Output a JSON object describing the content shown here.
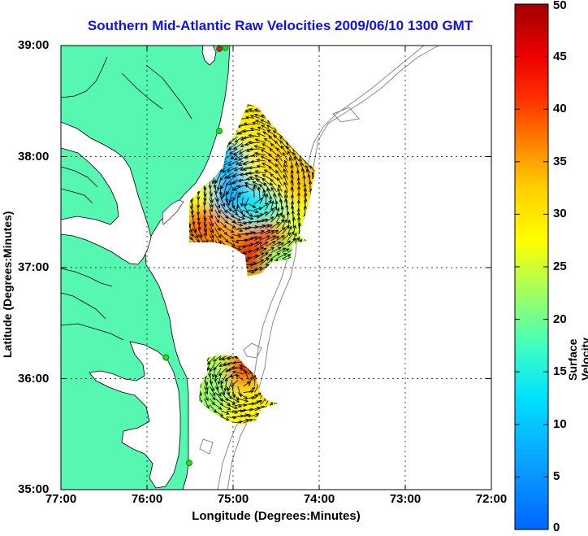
{
  "title": "Southern Mid-Atlantic Raw Velocities 2009/06/10 1300 GMT",
  "xlabel": "Longitude (Degrees:Minutes)",
  "ylabel": "Latitude (Degrees:Minutes)",
  "colorbar_label": "Surface Velocity (cm/s)",
  "x_ticks": [
    "77:00",
    "76:00",
    "75:00",
    "74:00",
    "73:00",
    "72:00"
  ],
  "y_ticks": [
    "39:00",
    "38:00",
    "37:00",
    "36:00",
    "35:00"
  ],
  "colorbar_ticks": [
    "50",
    "45",
    "40",
    "35",
    "30",
    "25",
    "20",
    "15",
    "10",
    "5",
    "0"
  ],
  "colors": {
    "land": "#55f7b1",
    "title": "#1010ee",
    "bathymetry": "#888888",
    "station": "#22dd22",
    "station_red": "#ee1111"
  },
  "chart_data": {
    "type": "heatmap",
    "map_extent": {
      "lon": [
        -77.0,
        -72.0
      ],
      "lat": [
        35.0,
        39.0
      ]
    },
    "colorbar_range": [
      0,
      50
    ],
    "colormap": "jet",
    "grid": true,
    "colorbar_placement": "right",
    "stations": [
      {
        "lon": -75.16,
        "lat": 38.97,
        "color": "red"
      },
      {
        "lon": -75.09,
        "lat": 38.98,
        "color": "green"
      },
      {
        "lon": -75.16,
        "lat": 38.23,
        "color": "green"
      },
      {
        "lon": -75.78,
        "lat": 36.19,
        "color": "green"
      },
      {
        "lon": -75.51,
        "lat": 35.24,
        "color": "green"
      }
    ],
    "velocity_regions": [
      {
        "name": "northern-region",
        "lon_range": [
          -75.6,
          -74.0
        ],
        "lat_range": [
          36.75,
          38.5
        ],
        "samples": [
          {
            "lon": -75.1,
            "lat": 37.95,
            "speed": 10
          },
          {
            "lon": -75.0,
            "lat": 37.65,
            "speed": 8
          },
          {
            "lon": -74.75,
            "lat": 37.55,
            "speed": 12
          },
          {
            "lon": -74.6,
            "lat": 37.45,
            "speed": 15
          },
          {
            "lon": -74.3,
            "lat": 38.2,
            "speed": 28
          },
          {
            "lon": -74.5,
            "lat": 38.0,
            "speed": 32
          },
          {
            "lon": -74.7,
            "lat": 38.3,
            "speed": 30
          },
          {
            "lon": -74.2,
            "lat": 37.8,
            "speed": 33
          },
          {
            "lon": -74.4,
            "lat": 37.3,
            "speed": 25
          },
          {
            "lon": -75.35,
            "lat": 37.35,
            "speed": 38
          },
          {
            "lon": -75.0,
            "lat": 37.25,
            "speed": 35
          },
          {
            "lon": -74.75,
            "lat": 37.1,
            "speed": 48
          },
          {
            "lon": -74.6,
            "lat": 37.2,
            "speed": 40
          },
          {
            "lon": -74.4,
            "lat": 37.05,
            "speed": 22
          }
        ]
      },
      {
        "name": "southern-region",
        "lon_range": [
          -75.4,
          -74.4
        ],
        "lat_range": [
          35.6,
          36.3
        ],
        "samples": [
          {
            "lon": -75.25,
            "lat": 36.15,
            "speed": 24
          },
          {
            "lon": -75.1,
            "lat": 35.9,
            "speed": 20
          },
          {
            "lon": -74.85,
            "lat": 36.05,
            "speed": 35
          },
          {
            "lon": -74.75,
            "lat": 36.15,
            "speed": 45
          },
          {
            "lon": -74.6,
            "lat": 35.85,
            "speed": 30
          },
          {
            "lon": -74.9,
            "lat": 35.7,
            "speed": 28
          },
          {
            "lon": -75.3,
            "lat": 35.8,
            "speed": 22
          }
        ]
      }
    ]
  }
}
